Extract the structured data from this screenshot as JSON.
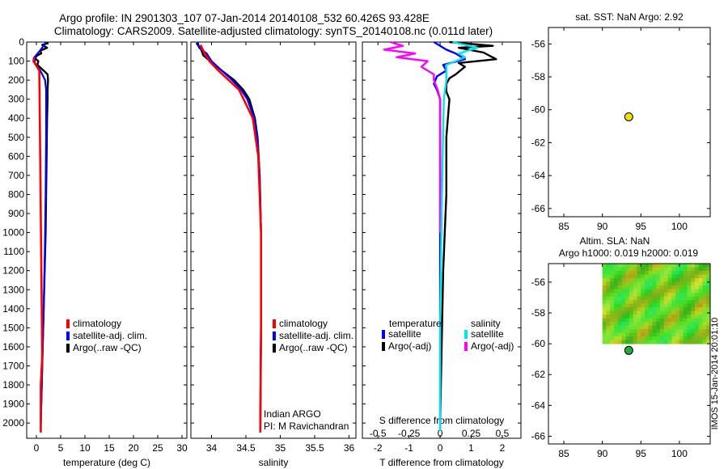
{
  "header": {
    "line1": "Argo profile: IN 2901303_107 07-Jan-2014 20140108_532 60.426S 93.428E",
    "line2": "Climatology: CARS2009. Satellite-adjusted climatology: synTS_20140108.nc (0.011d later)"
  },
  "side_stamp": "IMOS 15-Jan-2014 20:01:10",
  "colors": {
    "climatology": "#ff0000",
    "satellite": "#0000ff",
    "argo": "#000000",
    "satellite_s": "#00e5ee",
    "argo_s": "#ff00ff",
    "point": "#f0e000"
  },
  "chart_data": [
    {
      "type": "line",
      "id": "temperature",
      "xlabel": "temperature (deg C)",
      "xlim": [
        -2,
        31
      ],
      "xticks": [
        "0",
        "5",
        "10",
        "15",
        "20",
        "25",
        "30"
      ],
      "xtick_values": [
        0,
        5,
        10,
        15,
        20,
        25,
        30
      ],
      "ylim": [
        0,
        2080
      ],
      "yticks": [
        "0",
        "100",
        "200",
        "300",
        "400",
        "500",
        "600",
        "700",
        "800",
        "900",
        "1000",
        "1100",
        "1200",
        "1300",
        "1400",
        "1500",
        "1600",
        "1700",
        "1800",
        "1900",
        "2000"
      ],
      "ytick_values": [
        0,
        100,
        200,
        300,
        400,
        500,
        600,
        700,
        800,
        900,
        1000,
        1100,
        1200,
        1300,
        1400,
        1500,
        1600,
        1700,
        1800,
        1900,
        2000
      ],
      "legend": [
        "climatology",
        "satellite-adj. clim.",
        "Argo(..raw -QC)"
      ],
      "series": [
        {
          "name": "climatology",
          "depth": [
            80,
            100,
            150,
            1650,
            1800,
            2050
          ],
          "values": [
            -0.5,
            -0.6,
            0.6,
            1.2,
            0.9,
            0.9
          ]
        },
        {
          "name": "satellite-adj. clim.",
          "depth": [
            0,
            40,
            80,
            110,
            150,
            200,
            250,
            300,
            500,
            800,
            1000,
            1300,
            1600,
            1900,
            2040
          ],
          "values": [
            2.0,
            0.9,
            -0.4,
            -0.3,
            0.8,
            1.8,
            2.0,
            2.0,
            2.0,
            1.9,
            1.8,
            1.6,
            1.3,
            1.0,
            0.9
          ]
        },
        {
          "name": "Argo(..raw -QC)",
          "depth": [
            5,
            15,
            30,
            45,
            60,
            70,
            85,
            100,
            120,
            150,
            170,
            200,
            250,
            300,
            400,
            600,
            800,
            1000,
            1200,
            1500,
            1800,
            2000
          ],
          "values": [
            2.5,
            1.2,
            2.2,
            0.8,
            1.0,
            0.2,
            -0.3,
            0.4,
            0.2,
            1.5,
            2.3,
            2.4,
            2.3,
            2.3,
            2.2,
            2.1,
            2.0,
            1.9,
            1.7,
            1.4,
            1.1,
            0.9
          ]
        }
      ]
    },
    {
      "type": "line",
      "id": "salinity",
      "xlabel": "salinity",
      "xlim": [
        33.7,
        36.1
      ],
      "xticks": [
        "34",
        "34.5",
        "35",
        "35.5",
        "36"
      ],
      "xtick_values": [
        34,
        34.5,
        35,
        35.5,
        36
      ],
      "ylim": [
        0,
        2080
      ],
      "legend": [
        "climatology",
        "satellite-adj. clim.",
        "Argo(..raw -QC)"
      ],
      "annotations": [
        "Indian ARGO",
        "PI: M Ravichandran"
      ],
      "series": [
        {
          "name": "climatology",
          "depth": [
            15,
            60,
            100,
            150,
            250,
            400,
            600,
            1000,
            1500,
            2050
          ],
          "values": [
            33.84,
            33.9,
            33.97,
            34.1,
            34.4,
            34.6,
            34.68,
            34.72,
            34.72,
            34.71
          ]
        },
        {
          "name": "satellite-adj. clim.",
          "depth": [
            0,
            30,
            60,
            100,
            150,
            200,
            250,
            300,
            400,
            500,
            700,
            1000,
            1500,
            2040
          ],
          "values": [
            33.8,
            33.82,
            33.93,
            34.0,
            34.15,
            34.3,
            34.43,
            34.52,
            34.62,
            34.67,
            34.7,
            34.72,
            34.72,
            34.71
          ]
        },
        {
          "name": "Argo(..raw -QC)",
          "depth": [
            5,
            40,
            70,
            100,
            150,
            200,
            250,
            300,
            400,
            500,
            700,
            1000,
            1500,
            2000
          ],
          "values": [
            33.78,
            33.85,
            33.88,
            33.98,
            34.15,
            34.33,
            34.46,
            34.55,
            34.63,
            34.67,
            34.7,
            34.72,
            34.72,
            34.71
          ]
        }
      ]
    },
    {
      "type": "line",
      "id": "difference",
      "xlabel": "T difference from climatology",
      "top_label": "S difference from climatology",
      "xlim": [
        -2.5,
        2.6
      ],
      "xticks": [
        "-2",
        "-1",
        "0",
        "1",
        "2"
      ],
      "xtick_values": [
        -2,
        -1,
        0,
        1,
        2
      ],
      "sticks": [
        "-0.5",
        "-0.25",
        "0",
        "0.25",
        "0.5"
      ],
      "stick_values": [
        -0.5,
        -0.25,
        0,
        0.25,
        0.5
      ],
      "ylim": [
        0,
        2080
      ],
      "legend_titles": [
        "temperature",
        "salinity"
      ],
      "legend": [
        "satellite",
        "Argo(-adj)",
        "satellite",
        "Argo(-adj)"
      ],
      "series": [
        {
          "name": "temperature satellite",
          "depth": [
            0,
            40,
            60,
            90,
            120,
            150,
            180,
            220,
            250,
            300,
            500,
            1000,
            1500,
            2040
          ],
          "values": [
            -0.2,
            0.2,
            0.5,
            0.8,
            0.1,
            0.2,
            -0.1,
            -0.2,
            -0.1,
            0.0,
            0.0,
            0.0,
            0.0,
            0.0
          ]
        },
        {
          "name": "temperature Argo(-adj)",
          "depth": [
            0,
            20,
            30,
            55,
            90,
            110,
            130,
            170,
            190,
            220,
            260,
            300,
            500,
            800,
            1200,
            1600,
            2000
          ],
          "values": [
            0.3,
            1.7,
            0.6,
            1.4,
            1.8,
            0.6,
            0.8,
            0.5,
            0.3,
            0.2,
            0.2,
            0.3,
            0.2,
            0.2,
            0.1,
            0.05,
            0.0
          ]
        },
        {
          "name": "salinity satellite",
          "depth": [
            0,
            30,
            60,
            80,
            120,
            200,
            300,
            600,
            1000,
            1500,
            2040
          ],
          "values": [
            0.1,
            0.3,
            0.15,
            0.2,
            0.05,
            0.05,
            0.03,
            0.02,
            0.01,
            0.0,
            0.0
          ]
        },
        {
          "name": "salinity Argo(-adj)",
          "depth": [
            0,
            20,
            40,
            60,
            80,
            100,
            130,
            170,
            200,
            250,
            300,
            500,
            1000
          ],
          "values": [
            -0.4,
            -0.3,
            -0.45,
            -0.2,
            -0.35,
            -0.1,
            -0.15,
            -0.05,
            -0.05,
            -0.02,
            0.0,
            0.0,
            0.0
          ]
        }
      ]
    },
    {
      "type": "scatter",
      "id": "sst_map",
      "title": "sat. SST: NaN Argo: 2.92",
      "xlim": [
        83,
        104
      ],
      "ylim": [
        -66.5,
        -55
      ],
      "xticks": [
        "85",
        "90",
        "95",
        "100"
      ],
      "xtick_values": [
        85,
        90,
        95,
        100
      ],
      "yticks": [
        "-56",
        "-58",
        "-60",
        "-62",
        "-64",
        "-66"
      ],
      "ytick_values": [
        -56,
        -58,
        -60,
        -62,
        -64,
        -66
      ],
      "points": [
        {
          "x": 93.43,
          "y": -60.43
        }
      ]
    },
    {
      "type": "heatmap",
      "id": "sla_map",
      "title_line1": "Altim. SLA: NaN",
      "title_line2": "Argo h1000: 0.019 h2000: 0.019",
      "xlim": [
        83,
        104
      ],
      "ylim": [
        -66.5,
        -54.8
      ],
      "xticks": [
        "85",
        "90",
        "95",
        "100"
      ],
      "xtick_values": [
        85,
        90,
        95,
        100
      ],
      "yticks": [
        "-56",
        "-58",
        "-60",
        "-62",
        "-64",
        "-66"
      ],
      "ytick_values": [
        -56,
        -58,
        -60,
        -62,
        -64,
        -66
      ],
      "field_extent": {
        "lon": [
          90,
          104
        ],
        "lat": [
          -60,
          -54.8
        ]
      },
      "points": [
        {
          "x": 93.43,
          "y": -60.43
        }
      ]
    }
  ]
}
